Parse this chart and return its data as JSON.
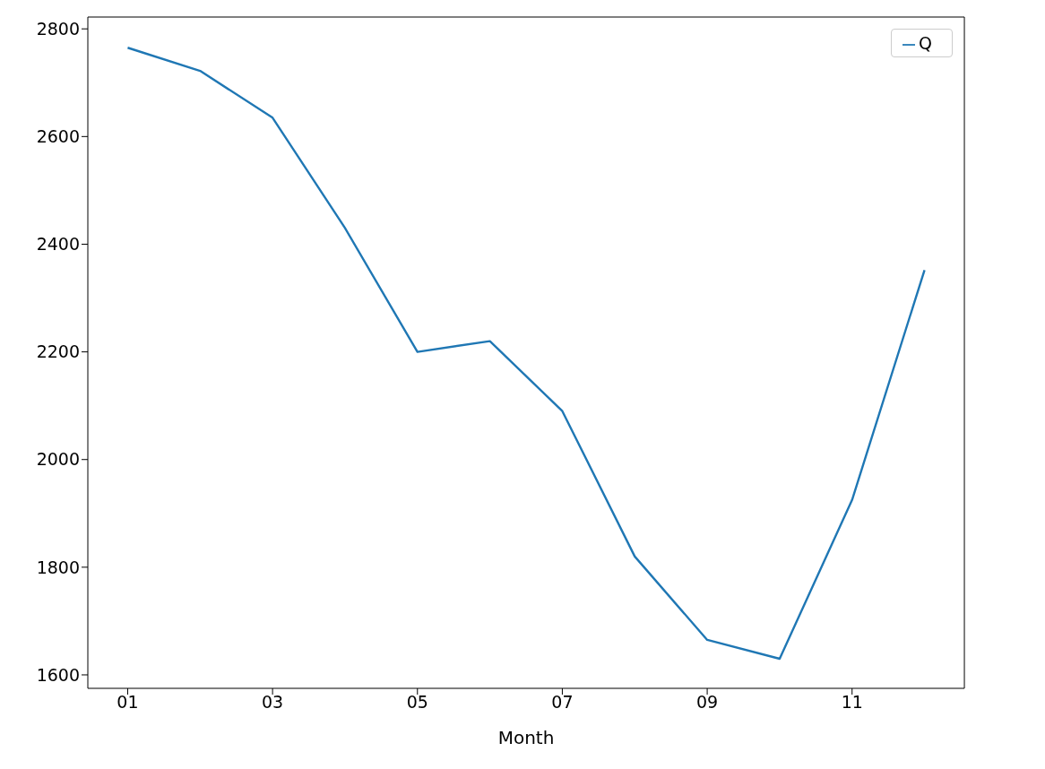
{
  "chart_data": {
    "type": "line",
    "xlabel": "Month",
    "x": [
      1,
      2,
      3,
      4,
      5,
      6,
      7,
      8,
      9,
      10,
      11,
      12
    ],
    "xlim": [
      0.45,
      12.55
    ],
    "xticks": [
      {
        "value": 1,
        "label": "01"
      },
      {
        "value": 3,
        "label": "03"
      },
      {
        "value": 5,
        "label": "05"
      },
      {
        "value": 7,
        "label": "07"
      },
      {
        "value": 9,
        "label": "09"
      },
      {
        "value": 11,
        "label": "11"
      }
    ],
    "ylim": [
      1575,
      2822
    ],
    "yticks": [
      1600,
      1800,
      2000,
      2200,
      2400,
      2600,
      2800
    ],
    "series": [
      {
        "name": "Q",
        "color": "#1f77b4",
        "values": [
          2765,
          2722,
          2635,
          2430,
          2200,
          2220,
          2090,
          1820,
          1665,
          1630,
          1925,
          2352
        ]
      }
    ],
    "legend": "top right",
    "marker": "none",
    "line_style": "solid"
  }
}
